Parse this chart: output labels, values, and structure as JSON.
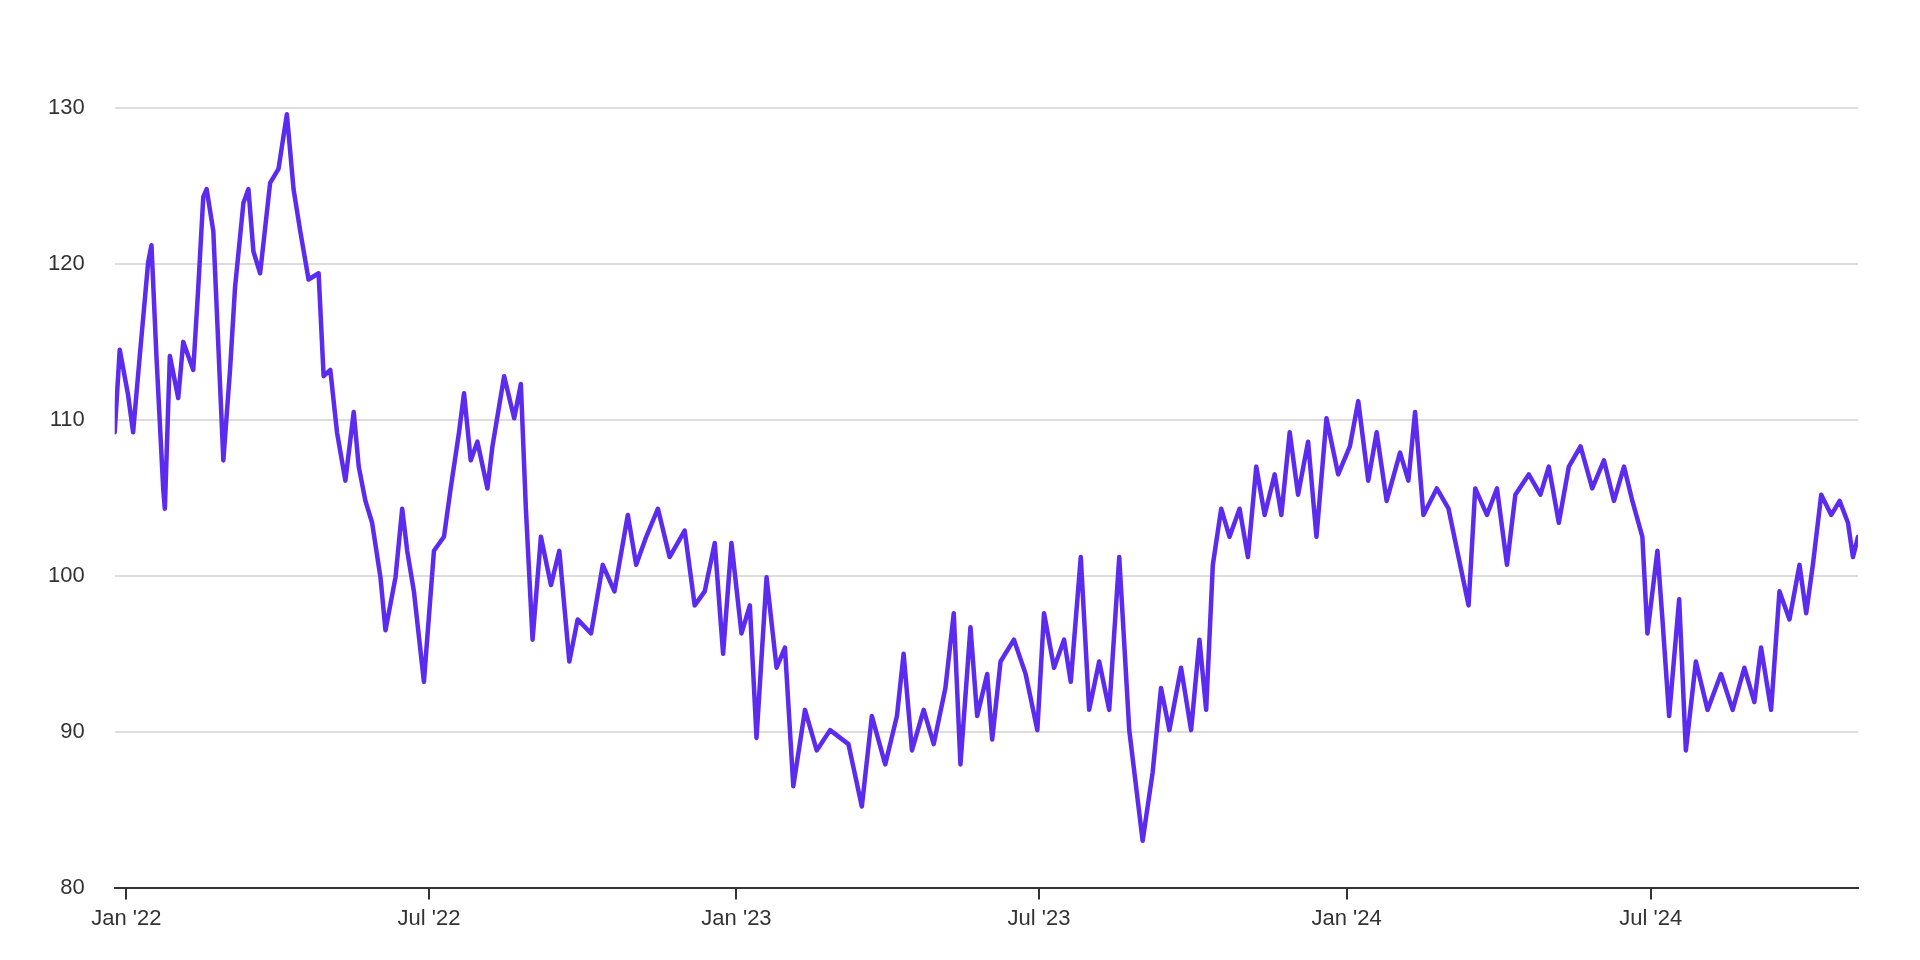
{
  "chart_data": {
    "type": "line",
    "color": "#5b2bf0",
    "grid": "y",
    "xlim": [
      "2021-12-25",
      "2024-11-02"
    ],
    "ylim": [
      80,
      130
    ],
    "xticks": [
      {
        "value": "2022-01-01",
        "label": "Jan '22"
      },
      {
        "value": "2022-07-01",
        "label": "Jul '22"
      },
      {
        "value": "2023-01-01",
        "label": "Jan '23"
      },
      {
        "value": "2023-07-01",
        "label": "Jul '23"
      },
      {
        "value": "2024-01-01",
        "label": "Jan '24"
      },
      {
        "value": "2024-07-01",
        "label": "Jul '24"
      }
    ],
    "yticks": [
      80,
      90,
      100,
      110,
      120,
      130
    ],
    "x": [
      "2021-12-25",
      "2021-12-28",
      "2022-01-02",
      "2022-01-05",
      "2022-01-09",
      "2022-01-14",
      "2022-01-16",
      "2022-01-19",
      "2022-01-23",
      "2022-01-24",
      "2022-01-27",
      "2022-02-01",
      "2022-02-04",
      "2022-02-10",
      "2022-02-13",
      "2022-02-16",
      "2022-02-18",
      "2022-02-22",
      "2022-02-28",
      "2022-03-04",
      "2022-03-07",
      "2022-03-12",
      "2022-03-15",
      "2022-03-18",
      "2022-03-22",
      "2022-03-28",
      "2022-04-02",
      "2022-04-07",
      "2022-04-11",
      "2022-04-15",
      "2022-04-20",
      "2022-04-26",
      "2022-04-29",
      "2022-05-03",
      "2022-05-07",
      "2022-05-12",
      "2022-05-17",
      "2022-05-20",
      "2022-05-24",
      "2022-05-28",
      "2022-06-02",
      "2022-06-05",
      "2022-06-11",
      "2022-06-15",
      "2022-06-18",
      "2022-06-22",
      "2022-06-28",
      "2022-07-04",
      "2022-07-10",
      "2022-07-14",
      "2022-07-19",
      "2022-07-22",
      "2022-07-26",
      "2022-07-30",
      "2022-08-05",
      "2022-08-08",
      "2022-08-15",
      "2022-08-21",
      "2022-08-25",
      "2022-08-28",
      "2022-09-01",
      "2022-09-06",
      "2022-09-12",
      "2022-09-17",
      "2022-09-23",
      "2022-09-28",
      "2022-10-06",
      "2022-10-13",
      "2022-10-20",
      "2022-10-28",
      "2022-11-02",
      "2022-11-08",
      "2022-11-15",
      "2022-11-22",
      "2022-12-01",
      "2022-12-07",
      "2022-12-13",
      "2022-12-19",
      "2022-12-24",
      "2022-12-29",
      "2023-01-04",
      "2023-01-09",
      "2023-01-13",
      "2023-01-19",
      "2023-01-25",
      "2023-01-30",
      "2023-02-04",
      "2023-02-11",
      "2023-02-18",
      "2023-02-26",
      "2023-03-09",
      "2023-03-17",
      "2023-03-23",
      "2023-03-31",
      "2023-04-07",
      "2023-04-11",
      "2023-04-16",
      "2023-04-23",
      "2023-04-29",
      "2023-05-06",
      "2023-05-11",
      "2023-05-15",
      "2023-05-21",
      "2023-05-25",
      "2023-05-31",
      "2023-06-03",
      "2023-06-08",
      "2023-06-16",
      "2023-06-23",
      "2023-06-30",
      "2023-07-04",
      "2023-07-10",
      "2023-07-16",
      "2023-07-20",
      "2023-07-26",
      "2023-07-31",
      "2023-08-06",
      "2023-08-12",
      "2023-08-18",
      "2023-08-24",
      "2023-09-01",
      "2023-09-07",
      "2023-09-12",
      "2023-09-17",
      "2023-09-24",
      "2023-09-30",
      "2023-10-05",
      "2023-10-09",
      "2023-10-13",
      "2023-10-18",
      "2023-10-23",
      "2023-10-29",
      "2023-11-03",
      "2023-11-08",
      "2023-11-13",
      "2023-11-19",
      "2023-11-23",
      "2023-11-28",
      "2023-12-03",
      "2023-12-09",
      "2023-12-14",
      "2023-12-20",
      "2023-12-27",
      "2024-01-03",
      "2024-01-08",
      "2024-01-14",
      "2024-01-19",
      "2024-01-25",
      "2024-02-02",
      "2024-02-07",
      "2024-02-11",
      "2024-02-16",
      "2024-02-24",
      "2024-03-02",
      "2024-03-08",
      "2024-03-14",
      "2024-03-18",
      "2024-03-25",
      "2024-03-31",
      "2024-04-06",
      "2024-04-11",
      "2024-04-19",
      "2024-04-26",
      "2024-05-01",
      "2024-05-07",
      "2024-05-13",
      "2024-05-20",
      "2024-05-27",
      "2024-06-03",
      "2024-06-09",
      "2024-06-15",
      "2024-06-20",
      "2024-06-26",
      "2024-06-29",
      "2024-07-05",
      "2024-07-08",
      "2024-07-12",
      "2024-07-18",
      "2024-07-22",
      "2024-07-28",
      "2024-08-04",
      "2024-08-12",
      "2024-08-19",
      "2024-08-26",
      "2024-09-01",
      "2024-09-05",
      "2024-09-11",
      "2024-09-16",
      "2024-09-22",
      "2024-09-28",
      "2024-10-02",
      "2024-10-06",
      "2024-10-11",
      "2024-10-17",
      "2024-10-22",
      "2024-10-27",
      "2024-10-30",
      "2024-11-02"
    ],
    "values": [
      109.2,
      114.5,
      111.6,
      109.2,
      114.1,
      120.1,
      121.2,
      114,
      105.6,
      104.3,
      114.1,
      111.4,
      115,
      113.2,
      118.5,
      124.3,
      124.8,
      122.1,
      107.4,
      113.2,
      118.5,
      123.9,
      124.8,
      120.8,
      119.4,
      125.2,
      126.1,
      129.6,
      124.8,
      122.1,
      119,
      119.4,
      112.8,
      113.2,
      109.2,
      106.1,
      110.5,
      107,
      104.8,
      103.4,
      99.9,
      96.5,
      99.9,
      104.3,
      101.6,
      99,
      93.2,
      101.6,
      102.5,
      105.6,
      109.2,
      111.7,
      107.4,
      108.6,
      105.6,
      108.3,
      112.8,
      110.1,
      112.3,
      104.3,
      95.9,
      102.5,
      99.4,
      101.6,
      94.5,
      97.2,
      96.3,
      100.7,
      99,
      103.9,
      100.7,
      102.5,
      104.3,
      101.2,
      102.9,
      98.1,
      99,
      102.1,
      95,
      102.1,
      96.3,
      98.1,
      89.6,
      99.9,
      94.1,
      95.4,
      86.5,
      91.4,
      88.8,
      90.1,
      89.2,
      85.2,
      91,
      87.9,
      91,
      95,
      88.8,
      91.4,
      89.2,
      92.8,
      97.6,
      87.9,
      96.7,
      91,
      93.7,
      89.5,
      94.5,
      95.9,
      93.7,
      90.1,
      97.6,
      94.1,
      95.9,
      93.2,
      101.2,
      91.4,
      94.5,
      91.4,
      101.2,
      90.1,
      83,
      87.4,
      92.8,
      90.1,
      94.1,
      90.1,
      95.9,
      91.4,
      100.7,
      104.3,
      102.5,
      104.3,
      101.2,
      107,
      103.9,
      106.5,
      103.9,
      109.2,
      105.2,
      108.6,
      102.5,
      110.1,
      106.5,
      108.3,
      111.2,
      106.1,
      109.2,
      104.8,
      107.9,
      106.1,
      110.5,
      103.9,
      105.6,
      104.3,
      101.2,
      98.1,
      105.6,
      103.9,
      105.6,
      100.7,
      105.2,
      106.5,
      105.2,
      107,
      103.4,
      107,
      108.3,
      105.6,
      107.4,
      104.8,
      107,
      104.8,
      102.5,
      96.3,
      101.6,
      97.2,
      91,
      98.5,
      88.8,
      94.5,
      91.4,
      93.7,
      91.4,
      94.1,
      91.9,
      95.4,
      91.4,
      99,
      97.2,
      100.7,
      97.6,
      100.7,
      105.2,
      103.9,
      104.8,
      103.4,
      101.2,
      102.5
    ]
  }
}
